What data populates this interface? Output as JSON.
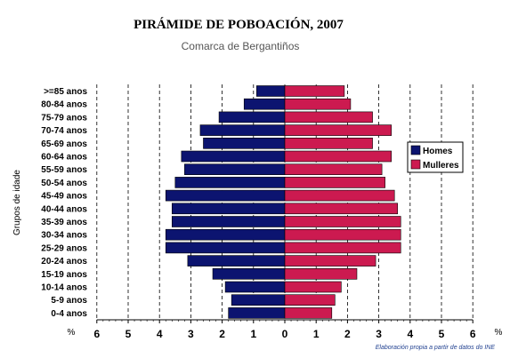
{
  "chart_data": {
    "type": "bar",
    "orientation": "horizontal-population-pyramid",
    "title": "PIRÁMIDE DE POBOACIÓN, 2007",
    "subtitle": "Comarca de Bergantiños",
    "ylabel": "Grupos de idade",
    "x_unit_label": "%",
    "xlim": [
      -6,
      6
    ],
    "x_ticks": [
      "6",
      "5",
      "4",
      "3",
      "2",
      "1",
      "0",
      "1",
      "2",
      "3",
      "4",
      "5",
      "6"
    ],
    "grid": true,
    "legend_position": "right",
    "categories": [
      ">=85 anos",
      "80-84 anos",
      "75-79 anos",
      "70-74 anos",
      "65-69 anos",
      "60-64 anos",
      "55-59 anos",
      "50-54 anos",
      "45-49 anos",
      "40-44 anos",
      "35-39 anos",
      "30-34 anos",
      "25-29 anos",
      "20-24 anos",
      "15-19 anos",
      "10-14 anos",
      "5-9 anos",
      "0-4 anos"
    ],
    "series": [
      {
        "name": "Homes",
        "color": "#0c1470",
        "side": "left",
        "values": [
          0.9,
          1.3,
          2.1,
          2.7,
          2.6,
          3.3,
          3.2,
          3.5,
          3.8,
          3.6,
          3.6,
          3.8,
          3.8,
          3.1,
          2.3,
          1.9,
          1.7,
          1.8
        ]
      },
      {
        "name": "Mulleres",
        "color": "#cc1a50",
        "side": "right",
        "values": [
          1.9,
          2.1,
          2.8,
          3.4,
          2.8,
          3.4,
          3.1,
          3.2,
          3.5,
          3.6,
          3.7,
          3.7,
          3.7,
          2.9,
          2.3,
          1.8,
          1.6,
          1.5
        ]
      }
    ],
    "source_note": "Elaboración propia a partir de datos do INE"
  }
}
